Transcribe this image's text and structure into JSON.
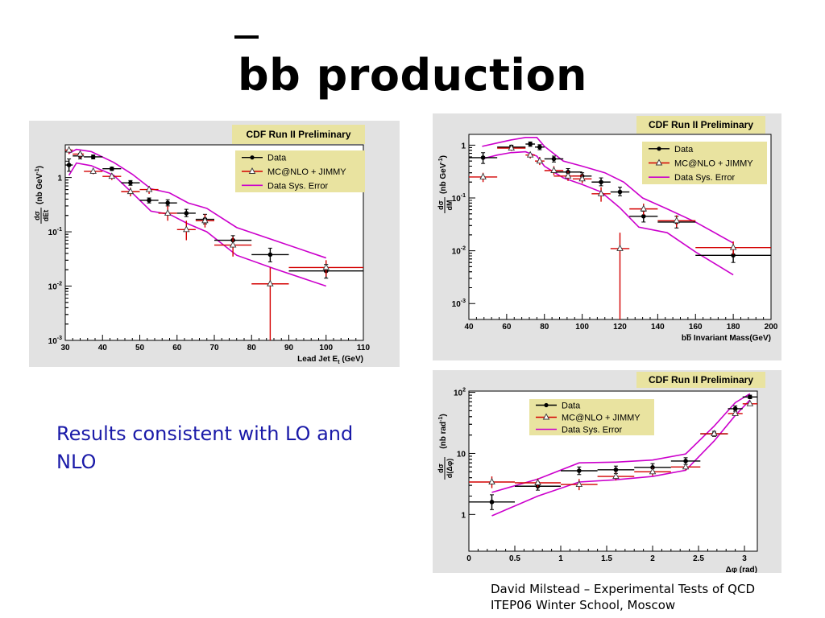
{
  "slide": {
    "title": "bb production",
    "body_text": "Results consistent with LO and NLO",
    "footer_line1": "David Milstead – Experimental Tests of QCD",
    "footer_line2": "ITEP06 Winter School, Moscow"
  },
  "colors": {
    "data": "#000000",
    "mc": "#d40000",
    "sys": "#cc00cc",
    "banner": "#e9e3a0",
    "panel_bg": "#e2e2e2"
  },
  "chart_data": [
    {
      "type": "scatter",
      "banner": "CDF Run II Preliminary",
      "xlabel": "Lead Jet E",
      "xlabel_sub": "t",
      "xlabel_unit": " (GeV)",
      "ylabel": "(nb GeV",
      "ylabel_sup": "-1",
      "ylabel_close": ")",
      "yfrac_num": "dσ",
      "yfrac_den": "dEt",
      "log_y": true,
      "xlim": [
        30,
        110
      ],
      "ylim": [
        0.001,
        4
      ],
      "x_ticks": [
        30,
        40,
        50,
        60,
        70,
        80,
        90,
        100,
        110
      ],
      "y_ticks": [
        0.001,
        0.01,
        0.1,
        1
      ],
      "y_tick_labels": [
        "10^-3",
        "10^-2",
        "10^-1",
        "1"
      ],
      "legend": [
        "Data",
        "MC@NLO + JIMMY",
        "Data Sys. Error"
      ],
      "series": [
        {
          "name": "Data",
          "points": [
            {
              "x": 31,
              "xlo": 30,
              "xhi": 32,
              "y": 1.7,
              "ylo": 1.3,
              "yhi": 2.2
            },
            {
              "x": 34,
              "xlo": 32,
              "xhi": 35,
              "y": 2.5,
              "ylo": 2.2,
              "yhi": 2.8
            },
            {
              "x": 37.5,
              "xlo": 35,
              "xhi": 40,
              "y": 2.4,
              "ylo": 2.2,
              "yhi": 2.6
            },
            {
              "x": 42.5,
              "xlo": 40,
              "xhi": 45,
              "y": 1.45,
              "ylo": 1.35,
              "yhi": 1.55
            },
            {
              "x": 47.5,
              "xlo": 45,
              "xhi": 50,
              "y": 0.8,
              "ylo": 0.72,
              "yhi": 0.88
            },
            {
              "x": 52.5,
              "xlo": 50,
              "xhi": 55,
              "y": 0.38,
              "ylo": 0.34,
              "yhi": 0.42
            },
            {
              "x": 57.5,
              "xlo": 55,
              "xhi": 60,
              "y": 0.34,
              "ylo": 0.3,
              "yhi": 0.39
            },
            {
              "x": 62.5,
              "xlo": 60,
              "xhi": 65,
              "y": 0.22,
              "ylo": 0.19,
              "yhi": 0.26
            },
            {
              "x": 67.5,
              "xlo": 65,
              "xhi": 70,
              "y": 0.17,
              "ylo": 0.14,
              "yhi": 0.21
            },
            {
              "x": 75,
              "xlo": 70,
              "xhi": 80,
              "y": 0.07,
              "ylo": 0.055,
              "yhi": 0.085
            },
            {
              "x": 85,
              "xlo": 80,
              "xhi": 90,
              "y": 0.038,
              "ylo": 0.028,
              "yhi": 0.05
            },
            {
              "x": 100,
              "xlo": 90,
              "xhi": 110,
              "y": 0.019,
              "ylo": 0.014,
              "yhi": 0.025
            }
          ]
        },
        {
          "name": "MC@NLO + JIMMY",
          "points": [
            {
              "x": 31,
              "xlo": 30,
              "xhi": 32,
              "y": 3.2,
              "ylo": 2.7,
              "yhi": 3.7
            },
            {
              "x": 34,
              "xlo": 32,
              "xhi": 35,
              "y": 2.7,
              "ylo": 2.3,
              "yhi": 3.1
            },
            {
              "x": 37.5,
              "xlo": 35,
              "xhi": 40,
              "y": 1.3,
              "ylo": 1.15,
              "yhi": 1.45
            },
            {
              "x": 42.5,
              "xlo": 40,
              "xhi": 45,
              "y": 1.05,
              "ylo": 0.9,
              "yhi": 1.2
            },
            {
              "x": 47.5,
              "xlo": 45,
              "xhi": 50,
              "y": 0.55,
              "ylo": 0.45,
              "yhi": 0.65
            },
            {
              "x": 52.5,
              "xlo": 50,
              "xhi": 55,
              "y": 0.6,
              "ylo": 0.5,
              "yhi": 0.7
            },
            {
              "x": 57.5,
              "xlo": 55,
              "xhi": 60,
              "y": 0.22,
              "ylo": 0.16,
              "yhi": 0.3
            },
            {
              "x": 62.5,
              "xlo": 60,
              "xhi": 65,
              "y": 0.11,
              "ylo": 0.07,
              "yhi": 0.16
            },
            {
              "x": 67.5,
              "xlo": 65,
              "xhi": 70,
              "y": 0.16,
              "ylo": 0.12,
              "yhi": 0.21
            },
            {
              "x": 75,
              "xlo": 70,
              "xhi": 80,
              "y": 0.057,
              "ylo": 0.035,
              "yhi": 0.08
            },
            {
              "x": 85,
              "xlo": 80,
              "xhi": 90,
              "y": 0.011,
              "ylo": 0.001,
              "yhi": 0.022
            },
            {
              "x": 100,
              "xlo": 90,
              "xhi": 110,
              "y": 0.022,
              "ylo": 0.015,
              "yhi": 0.03
            }
          ]
        }
      ],
      "band": {
        "name": "Data Sys. Error",
        "upper": [
          [
            31,
            2.8
          ],
          [
            33,
            3.3
          ],
          [
            37,
            3.0
          ],
          [
            43,
            1.9
          ],
          [
            48,
            1.15
          ],
          [
            53,
            0.62
          ],
          [
            58,
            0.52
          ],
          [
            63,
            0.34
          ],
          [
            68,
            0.27
          ],
          [
            70,
            0.22
          ],
          [
            76,
            0.12
          ],
          [
            86,
            0.07
          ],
          [
            100,
            0.033
          ]
        ],
        "lower": [
          [
            31,
            1.1
          ],
          [
            33,
            1.85
          ],
          [
            37,
            1.65
          ],
          [
            43,
            1.1
          ],
          [
            48,
            0.52
          ],
          [
            53,
            0.24
          ],
          [
            58,
            0.21
          ],
          [
            63,
            0.14
          ],
          [
            68,
            0.1
          ],
          [
            76,
            0.037
          ],
          [
            86,
            0.021
          ],
          [
            100,
            0.01
          ]
        ]
      }
    },
    {
      "type": "scatter",
      "banner": "CDF Run II Preliminary",
      "xlabel": "bb Invariant Mass(GeV)",
      "xlabel_overline": "b",
      "ylabel": "(nb GeV",
      "ylabel_sup": "-1",
      "ylabel_close": ")",
      "yfrac_num": "dσ",
      "yfrac_den": "dM",
      "log_y": true,
      "xlim": [
        40,
        200
      ],
      "ylim": [
        0.0005,
        1.6
      ],
      "x_ticks": [
        40,
        60,
        80,
        100,
        120,
        140,
        160,
        180,
        200
      ],
      "y_ticks": [
        0.001,
        0.01,
        0.1,
        1
      ],
      "y_tick_labels": [
        "10^-3",
        "10^-2",
        "10^-1",
        "1"
      ],
      "legend": [
        "Data",
        "MC@NLO + JIMMY",
        "Data Sys. Error"
      ],
      "series": [
        {
          "name": "Data",
          "points": [
            {
              "x": 47.5,
              "xlo": 40,
              "xhi": 55,
              "y": 0.58,
              "ylo": 0.45,
              "yhi": 0.72
            },
            {
              "x": 62.5,
              "xlo": 55,
              "xhi": 70,
              "y": 0.92,
              "ylo": 0.84,
              "yhi": 1.0
            },
            {
              "x": 72.5,
              "xlo": 70,
              "xhi": 75,
              "y": 1.05,
              "ylo": 0.95,
              "yhi": 1.15
            },
            {
              "x": 77.5,
              "xlo": 75,
              "xhi": 80,
              "y": 0.92,
              "ylo": 0.82,
              "yhi": 1.02
            },
            {
              "x": 85,
              "xlo": 80,
              "xhi": 90,
              "y": 0.55,
              "ylo": 0.48,
              "yhi": 0.62
            },
            {
              "x": 92.5,
              "xlo": 85,
              "xhi": 100,
              "y": 0.31,
              "ylo": 0.27,
              "yhi": 0.36
            },
            {
              "x": 100,
              "xlo": 95,
              "xhi": 105,
              "y": 0.26,
              "ylo": 0.22,
              "yhi": 0.3
            },
            {
              "x": 110,
              "xlo": 105,
              "xhi": 115,
              "y": 0.2,
              "ylo": 0.17,
              "yhi": 0.24
            },
            {
              "x": 120,
              "xlo": 115,
              "xhi": 125,
              "y": 0.13,
              "ylo": 0.11,
              "yhi": 0.16
            },
            {
              "x": 132.5,
              "xlo": 125,
              "xhi": 140,
              "y": 0.045,
              "ylo": 0.035,
              "yhi": 0.056
            },
            {
              "x": 150,
              "xlo": 140,
              "xhi": 160,
              "y": 0.035,
              "ylo": 0.027,
              "yhi": 0.045
            },
            {
              "x": 180,
              "xlo": 160,
              "xhi": 200,
              "y": 0.0082,
              "ylo": 0.006,
              "yhi": 0.011
            }
          ]
        },
        {
          "name": "MC@NLO + JIMMY",
          "points": [
            {
              "x": 47.5,
              "xlo": 40,
              "xhi": 55,
              "y": 0.25,
              "ylo": 0.2,
              "yhi": 0.3
            },
            {
              "x": 62.5,
              "xlo": 55,
              "xhi": 70,
              "y": 0.88,
              "ylo": 0.78,
              "yhi": 1.0
            },
            {
              "x": 72.5,
              "xlo": 70,
              "xhi": 75,
              "y": 0.65,
              "ylo": 0.56,
              "yhi": 0.75
            },
            {
              "x": 77.5,
              "xlo": 75,
              "xhi": 80,
              "y": 0.5,
              "ylo": 0.42,
              "yhi": 0.6
            },
            {
              "x": 85,
              "xlo": 80,
              "xhi": 90,
              "y": 0.33,
              "ylo": 0.27,
              "yhi": 0.4
            },
            {
              "x": 92.5,
              "xlo": 85,
              "xhi": 100,
              "y": 0.26,
              "ylo": 0.21,
              "yhi": 0.32
            },
            {
              "x": 100,
              "xlo": 95,
              "xhi": 105,
              "y": 0.23,
              "ylo": 0.19,
              "yhi": 0.28
            },
            {
              "x": 110,
              "xlo": 105,
              "xhi": 115,
              "y": 0.12,
              "ylo": 0.085,
              "yhi": 0.16
            },
            {
              "x": 120,
              "xlo": 115,
              "xhi": 125,
              "y": 0.011,
              "ylo": 0.0005,
              "yhi": 0.022
            },
            {
              "x": 132.5,
              "xlo": 125,
              "xhi": 140,
              "y": 0.062,
              "ylo": 0.048,
              "yhi": 0.078
            },
            {
              "x": 150,
              "xlo": 140,
              "xhi": 160,
              "y": 0.037,
              "ylo": 0.028,
              "yhi": 0.047
            },
            {
              "x": 180,
              "xlo": 160,
              "xhi": 200,
              "y": 0.0115,
              "ylo": 0.0085,
              "yhi": 0.015
            }
          ]
        }
      ],
      "band": {
        "name": "Data Sys. Error",
        "upper": [
          [
            47,
            0.95
          ],
          [
            55,
            1.1
          ],
          [
            62,
            1.25
          ],
          [
            70,
            1.4
          ],
          [
            76,
            1.4
          ],
          [
            80,
            0.95
          ],
          [
            90,
            0.5
          ],
          [
            100,
            0.4
          ],
          [
            112,
            0.3
          ],
          [
            122,
            0.2
          ],
          [
            132,
            0.1
          ],
          [
            145,
            0.062
          ],
          [
            160,
            0.035
          ],
          [
            180,
            0.014
          ]
        ],
        "lower": [
          [
            47,
            0.55
          ],
          [
            55,
            0.65
          ],
          [
            62,
            0.72
          ],
          [
            70,
            0.75
          ],
          [
            76,
            0.62
          ],
          [
            80,
            0.4
          ],
          [
            90,
            0.24
          ],
          [
            100,
            0.18
          ],
          [
            110,
            0.13
          ],
          [
            120,
            0.065
          ],
          [
            130,
            0.028
          ],
          [
            145,
            0.022
          ],
          [
            160,
            0.0095
          ],
          [
            180,
            0.0035
          ]
        ]
      }
    },
    {
      "type": "scatter",
      "banner": "CDF Run II Preliminary",
      "xlabel": "Δφ (rad)",
      "ylabel": "(nb rad",
      "ylabel_sup": "-1",
      "ylabel_close": ")",
      "yfrac_num": "dσ",
      "yfrac_den": "d(Δφ)",
      "log_y": true,
      "xlim": [
        0,
        3.14
      ],
      "ylim": [
        0.25,
        105
      ],
      "x_ticks": [
        0,
        0.5,
        1,
        1.5,
        2,
        2.5,
        3
      ],
      "x_tick_labels": [
        "0",
        "0.5",
        "1",
        "1.5",
        "2",
        "2.5",
        "3"
      ],
      "y_ticks": [
        1,
        10,
        100
      ],
      "y_tick_labels": [
        "1",
        "10",
        "10^2"
      ],
      "legend": [
        "Data",
        "MC@NLO + JIMMY",
        "Data Sys. Error"
      ],
      "series": [
        {
          "name": "Data",
          "points": [
            {
              "x": 0.25,
              "xlo": 0,
              "xhi": 0.5,
              "y": 1.6,
              "ylo": 1.2,
              "yhi": 2.1
            },
            {
              "x": 0.75,
              "xlo": 0.5,
              "xhi": 1.0,
              "y": 2.9,
              "ylo": 2.5,
              "yhi": 3.4
            },
            {
              "x": 1.2,
              "xlo": 1.0,
              "xhi": 1.4,
              "y": 5.2,
              "ylo": 4.5,
              "yhi": 6.0
            },
            {
              "x": 1.6,
              "xlo": 1.4,
              "xhi": 1.8,
              "y": 5.4,
              "ylo": 4.7,
              "yhi": 6.2
            },
            {
              "x": 2.0,
              "xlo": 1.8,
              "xhi": 2.2,
              "y": 5.9,
              "ylo": 5.1,
              "yhi": 6.8
            },
            {
              "x": 2.36,
              "xlo": 2.2,
              "xhi": 2.52,
              "y": 7.5,
              "ylo": 6.6,
              "yhi": 8.5
            },
            {
              "x": 2.67,
              "xlo": 2.52,
              "xhi": 2.82,
              "y": 21,
              "ylo": 19,
              "yhi": 23
            },
            {
              "x": 2.9,
              "xlo": 2.82,
              "xhi": 2.98,
              "y": 54,
              "ylo": 49,
              "yhi": 60
            },
            {
              "x": 3.06,
              "xlo": 2.98,
              "xhi": 3.14,
              "y": 84,
              "ylo": 79,
              "yhi": 90
            }
          ]
        },
        {
          "name": "MC@NLO + JIMMY",
          "points": [
            {
              "x": 0.25,
              "xlo": 0,
              "xhi": 0.5,
              "y": 3.4,
              "ylo": 2.7,
              "yhi": 4.2
            },
            {
              "x": 0.75,
              "xlo": 0.5,
              "xhi": 1.0,
              "y": 3.3,
              "ylo": 2.8,
              "yhi": 3.9
            },
            {
              "x": 1.2,
              "xlo": 1.0,
              "xhi": 1.4,
              "y": 3.1,
              "ylo": 2.5,
              "yhi": 3.8
            },
            {
              "x": 1.6,
              "xlo": 1.4,
              "xhi": 1.8,
              "y": 4.2,
              "ylo": 3.6,
              "yhi": 4.9
            },
            {
              "x": 2.0,
              "xlo": 1.8,
              "xhi": 2.2,
              "y": 5.0,
              "ylo": 4.3,
              "yhi": 5.8
            },
            {
              "x": 2.36,
              "xlo": 2.2,
              "xhi": 2.52,
              "y": 6.0,
              "ylo": 5.3,
              "yhi": 6.8
            },
            {
              "x": 2.67,
              "xlo": 2.52,
              "xhi": 2.82,
              "y": 21,
              "ylo": 19,
              "yhi": 23
            },
            {
              "x": 2.9,
              "xlo": 2.82,
              "xhi": 2.98,
              "y": 45,
              "ylo": 41,
              "yhi": 50
            },
            {
              "x": 3.06,
              "xlo": 2.98,
              "xhi": 3.14,
              "y": 65,
              "ylo": 60,
              "yhi": 71
            }
          ]
        }
      ],
      "band": {
        "name": "Data Sys. Error",
        "upper": [
          [
            0.25,
            2.3
          ],
          [
            0.75,
            3.8
          ],
          [
            1.2,
            7.0
          ],
          [
            1.6,
            7.2
          ],
          [
            2.0,
            7.8
          ],
          [
            2.36,
            9.8
          ],
          [
            2.67,
            28
          ],
          [
            2.9,
            68
          ],
          [
            3.06,
            95
          ]
        ],
        "lower": [
          [
            0.25,
            0.95
          ],
          [
            0.75,
            2.0
          ],
          [
            1.2,
            3.4
          ],
          [
            1.6,
            3.7
          ],
          [
            2.0,
            4.2
          ],
          [
            2.36,
            5.3
          ],
          [
            2.67,
            16
          ],
          [
            2.9,
            42
          ],
          [
            3.06,
            75
          ]
        ]
      }
    }
  ]
}
